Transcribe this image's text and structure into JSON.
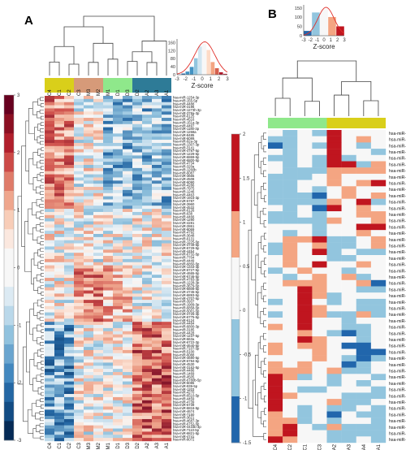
{
  "panels": {
    "A": {
      "label": "A",
      "columns": [
        "C4",
        "C1",
        "C2",
        "C3",
        "M3",
        "M2",
        "M1",
        "D1",
        "D3",
        "D2",
        "A2",
        "A3",
        "A1"
      ],
      "column_groups": [
        {
          "color": "#d9cf1a",
          "count": 3
        },
        {
          "color": "#d69a79",
          "count": 3
        },
        {
          "color": "#8fe88b",
          "count": 3
        },
        {
          "color": "#2e7b97",
          "count": 4
        }
      ],
      "colorbar": {
        "ticks": [
          "3",
          "2",
          "1",
          "0",
          "-1",
          "-2",
          "-3"
        ],
        "colors": [
          "#67001f",
          "#8b0f22",
          "#b11f2c",
          "#cc4a47",
          "#df7b69",
          "#efa68d",
          "#f8cdb8",
          "#fbe8df",
          "#f7f7f7",
          "#f7f7f7",
          "#dceaf3",
          "#bad8ea",
          "#91c2de",
          "#6aa5cf",
          "#4388bf",
          "#2467a4",
          "#124c84",
          "#052a56"
        ]
      },
      "histogram": {
        "xlabel": "Z-score",
        "yticks": [
          "0",
          "40",
          "80",
          "120",
          "160"
        ],
        "xticks": [
          "-3",
          "-2",
          "-1",
          "0",
          "1",
          "2",
          "3"
        ],
        "bins": [
          {
            "value": 2,
            "color": "#2166ac"
          },
          {
            "value": 6,
            "color": "#2166ac"
          },
          {
            "value": 15,
            "color": "#4393c3"
          },
          {
            "value": 36,
            "color": "#4393c3"
          },
          {
            "value": 75,
            "color": "#92c5de"
          },
          {
            "value": 128,
            "color": "#d1e5f0"
          },
          {
            "value": 140,
            "color": "#f7f7f7"
          },
          {
            "value": 112,
            "color": "#fddbc7"
          },
          {
            "value": 58,
            "color": "#f4a582"
          },
          {
            "value": 30,
            "color": "#d6604d"
          },
          {
            "value": 12,
            "color": "#b2182b"
          },
          {
            "value": 5,
            "color": "#b2182b"
          }
        ]
      },
      "row_labels": [
        "hsa-miR-1254-3p",
        "hsa-miR-155-5p",
        "hsa-miR-4488",
        "hsa-miR-3196",
        "hsa-miR-1273h-3p",
        "hsa-miR-378a-3p",
        "hsa-miR-6125",
        "hsa-miR-4516",
        "hsa-miR-151a-3p",
        "hsa-miR-4497",
        "hsa-miR-1180-3p",
        "hsa-miR-1268a",
        "hsa-miR-8485",
        "hsa-miR-6089",
        "hsa-miR-92a-3p",
        "hsa-miR-1307-3p",
        "hsa-miR-3141",
        "hsa-miR-4787-5p",
        "hsa-miR-1229-5p",
        "hsa-miR-6869-5p",
        "hsa-miR-6800-5p",
        "hsa-miR-4734",
        "hsa-miR-320a",
        "hsa-miR-1260b",
        "hsa-miR-6087",
        "hsa-miR-3665",
        "hsa-miR-4508",
        "hsa-miR-6090",
        "hsa-miR-4286",
        "hsa-miR-7975",
        "hsa-miR-1246",
        "hsa-miR-4463",
        "hsa-miR-1915-3p",
        "hsa-miR-5787",
        "hsa-miR-3960",
        "hsa-miR-4532",
        "hsa-miR-6126",
        "hsa-miR-638",
        "hsa-miR-4466",
        "hsa-miR-1290",
        "hsa-miR-4281",
        "hsa-miR-2861",
        "hsa-miR-8069",
        "hsa-miR-4792",
        "hsa-miR-3648",
        "hsa-miR-6131",
        "hsa-miR-1225-5p",
        "hsa-miR-4749-5p",
        "hsa-miR-6729-5p",
        "hsa-miR-4454",
        "hsa-miR-6732-5p",
        "hsa-miR-7704",
        "hsa-miR-4449",
        "hsa-miR-6850-5p",
        "hsa-miR-1343-3p",
        "hsa-miR-6727-5p",
        "hsa-miR-4665-5p",
        "hsa-miR-6746-5p",
        "hsa-miR-4783-3p",
        "hsa-miR-1228-3p",
        "hsa-miR-3679-5p",
        "hsa-miR-6808-5p",
        "hsa-miR-4745-5p",
        "hsa-miR-6893-5p",
        "hsa-miR-4707-5p",
        "hsa-miR-3937",
        "hsa-miR-1909-3p",
        "hsa-miR-6858-5p",
        "hsa-miR-5001-5p",
        "hsa-miR-4725-3p",
        "hsa-miR-6775-5p",
        "hsa-miR-6124",
        "hsa-miR-4484",
        "hsa-miR-6800-3p",
        "hsa-miR-3185",
        "hsa-miR-4428",
        "hsa-miR-1237-5p",
        "hsa-miR-663a",
        "hsa-miR-6722-3p",
        "hsa-miR-4640-5p",
        "hsa-miR-7107-5p",
        "hsa-miR-5100",
        "hsa-miR-6088",
        "hsa-miR-4690-5p",
        "hsa-miR-6784-5p",
        "hsa-miR-4530",
        "hsa-miR-3162-5p",
        "hsa-miR-4486",
        "hsa-miR-1469",
        "hsa-miR-4505",
        "hsa-miR-6780b-5p",
        "hsa-miR-6085",
        "hsa-miR-939-5p",
        "hsa-miR-1203",
        "hsa-miR-4270",
        "hsa-miR-6510-5p",
        "hsa-miR-4459",
        "hsa-miR-4739",
        "hsa-miR-5739",
        "hsa-miR-6816-5p",
        "hsa-miR-4674",
        "hsa-miR-7150",
        "hsa-miR-3621",
        "hsa-miR-4687-3p",
        "hsa-miR-6752-5p",
        "hsa-miR-4433b-3p",
        "hsa-miR-7110-5p",
        "hsa-miR-6821-5p",
        "hsa-miR-4741",
        "hsa-miR-8072"
      ]
    },
    "B": {
      "label": "B",
      "columns": [
        "C4",
        "C2",
        "C1",
        "C3",
        "A2",
        "A3",
        "A4",
        "A1"
      ],
      "column_groups": [
        {
          "color": "#8fe88b",
          "count": 4
        },
        {
          "color": "#d9cf1a",
          "count": 4
        }
      ],
      "colorbar": {
        "ticks": [
          "2",
          "1.5",
          "1",
          "0.5",
          "0",
          "-0.5",
          "-1",
          "-1.5"
        ],
        "colors": [
          "#c0151f",
          "#c0151f",
          "#c0151f",
          "#c0151f",
          "#c0151f",
          "#f4a582",
          "#f4a582",
          "#f4a582",
          "#f7f7f7",
          "#f7f7f7",
          "#f7f7f7",
          "#f7f7f7",
          "#92c5de",
          "#92c5de",
          "#92c5de",
          "#92c5de",
          "#92c5de",
          "#2166ac",
          "#2166ac",
          "#2166ac"
        ]
      },
      "histogram": {
        "xlabel": "Z-score",
        "yticks": [
          "0",
          "50",
          "100",
          "150"
        ],
        "xticks": [
          "-3",
          "-2",
          "-1",
          "0",
          "1",
          "2",
          "3"
        ],
        "bins": [
          {
            "value": 25,
            "color": "#2166ac"
          },
          {
            "value": 118,
            "color": "#92c5de"
          },
          {
            "value": 135,
            "color": "#f7f7f7"
          },
          {
            "value": 95,
            "color": "#f4a582"
          },
          {
            "value": 48,
            "color": "#c0151f"
          }
        ]
      },
      "row_labels": [
        "hsa-miR-514a-3p",
        "hsa-miR-106a-3p",
        "hsa-miR-4635",
        "hsa-miR-2114-5p",
        "hsa-miR-4511",
        "hsa-miR-4459",
        "hsa-miR-376c-5p",
        "hsa-miR-548ac",
        "hsa-miR-7977",
        "hsa-miR-936",
        "hsa-miR-515-3p",
        "hsa-miR-518f-3p",
        "hsa-miR-1273g-3p",
        "hsa-miR-4268",
        "hsa-miR-4795-3p",
        "hsa-miR-553",
        "hsa-miR-2160-3p",
        "hsa-miR-6859-5p",
        "hsa-miR-4698",
        "hsa-miR-4747-5p",
        "hsa-miR-3617-3p",
        "hsa-miR-6885-3p",
        "hsa-miR-6745-3p",
        "hsa-miR-4800-3p",
        "hsa-miR-6723-5p",
        "hsa-miR-525-5p",
        "hsa-miR-970-5p",
        "hsa-miR-548ai",
        "hsa-miR-128-1-5p",
        "hsa-miR-6083",
        "hsa-miR-6500-3p",
        "hsa-miR-1181",
        "hsa-miR-6824-3p",
        "hsa-miR-4535",
        "hsa-miR-22b-3p",
        "hsa-miR-1287-5p",
        "hsa-miR-1307-5p",
        "hsa-miR-29b-2-5p",
        "hsa-miR-326",
        "hsa-miR-3156-3p",
        "hsa-miR-6474-3p",
        "hsa-miR-1287-3p",
        "hsa-miR-3619-3p",
        "hsa-miR-2278",
        "hsa-miR-7706",
        "hsa-miR-185-3p",
        "hsa-miR-670-3p",
        "hsa-miR-15a-5p",
        "hsa-miR-328-5p",
        "hsa-miR-505-3p"
      ],
      "cells": [
        [
          0,
          -1,
          0,
          -1,
          2,
          0,
          0,
          0
        ],
        [
          -1,
          -1,
          0,
          0,
          2,
          0,
          1,
          0
        ],
        [
          -2,
          -1,
          0,
          -1,
          2,
          0,
          -1,
          0
        ],
        [
          0,
          -1,
          0,
          0,
          2,
          0,
          0,
          -1
        ],
        [
          -1,
          -1,
          0,
          -1,
          2,
          -1,
          0,
          0
        ],
        [
          0,
          -1,
          0,
          -1,
          2,
          2,
          -1,
          1
        ],
        [
          0,
          -1,
          -1,
          -1,
          1,
          1,
          1,
          1
        ],
        [
          -1,
          -1,
          -1,
          0,
          1,
          0,
          0,
          0
        ],
        [
          -1,
          -1,
          0,
          0,
          1,
          0,
          1,
          2
        ],
        [
          -1,
          -1,
          0,
          -1,
          0,
          1,
          0,
          0
        ],
        [
          -1,
          -1,
          -1,
          -2,
          0,
          1,
          0,
          1
        ],
        [
          -1,
          -1,
          -1,
          -1,
          1,
          0,
          2,
          -1
        ],
        [
          0,
          -1,
          0,
          -2,
          2,
          0,
          1,
          0
        ],
        [
          -1,
          -1,
          0,
          -1,
          0,
          0,
          1,
          1
        ],
        [
          -1,
          -1,
          -1,
          -1,
          1,
          0,
          0,
          1
        ],
        [
          0,
          0,
          0,
          -1,
          0,
          0,
          2,
          2
        ],
        [
          0,
          -1,
          0,
          -1,
          0,
          0,
          1,
          0
        ],
        [
          0,
          1,
          1,
          2,
          -1,
          -1,
          0,
          1
        ],
        [
          -1,
          1,
          0,
          1,
          -1,
          -1,
          0,
          1
        ],
        [
          -1,
          1,
          0,
          2,
          -1,
          0,
          -1,
          -1
        ],
        [
          0,
          1,
          0,
          0,
          -1,
          -1,
          0,
          0
        ],
        [
          0,
          1,
          0,
          2,
          0,
          0,
          1,
          0
        ],
        [
          -1,
          0,
          1,
          0,
          0,
          -1,
          0,
          0
        ],
        [
          0,
          -1,
          0,
          1,
          0,
          1,
          -1,
          0
        ],
        [
          0,
          1,
          1,
          1,
          0,
          0,
          1,
          -2
        ],
        [
          0,
          0,
          2,
          1,
          0,
          0,
          -1,
          -1
        ],
        [
          0,
          0,
          2,
          1,
          -1,
          0,
          0,
          0
        ],
        [
          -1,
          0,
          2,
          0,
          -1,
          0,
          -1,
          -1
        ],
        [
          0,
          0,
          2,
          1,
          0,
          0,
          -1,
          -1
        ],
        [
          -1,
          0,
          2,
          1,
          -1,
          -1,
          1,
          -1
        ],
        [
          0,
          0,
          2,
          0,
          0,
          -1,
          0,
          0
        ],
        [
          1,
          0,
          2,
          0,
          0,
          -1,
          -1,
          0
        ],
        [
          0,
          0,
          1,
          0,
          -1,
          -2,
          -1,
          0
        ],
        [
          0,
          0,
          2,
          1,
          0,
          0,
          -1,
          0
        ],
        [
          1,
          0,
          1,
          1,
          0,
          -2,
          -2,
          0
        ],
        [
          1,
          0,
          0,
          1,
          0,
          0,
          -2,
          -2
        ],
        [
          0,
          0,
          0,
          1,
          0,
          -1,
          -2,
          -1
        ],
        [
          1,
          0,
          1,
          0,
          0,
          -2,
          -1,
          0
        ],
        [
          1,
          1,
          1,
          0,
          1,
          -1,
          -1,
          0
        ],
        [
          2,
          1,
          -1,
          0,
          -1,
          0,
          0,
          -1
        ],
        [
          2,
          0,
          0,
          0,
          -1,
          0,
          -1,
          0
        ],
        [
          2,
          0,
          -1,
          -1,
          0,
          0,
          0,
          -1
        ],
        [
          2,
          1,
          0,
          0,
          0,
          -1,
          -1,
          -1
        ],
        [
          2,
          0,
          0,
          0,
          1,
          -1,
          -1,
          0
        ],
        [
          2,
          0,
          -1,
          0,
          -1,
          -1,
          0,
          -1
        ],
        [
          1,
          0,
          -1,
          0,
          -2,
          0,
          -1,
          -1
        ],
        [
          1,
          1,
          -1,
          0,
          -1,
          0,
          0,
          -1
        ],
        [
          1,
          2,
          0,
          -1,
          1,
          -1,
          -1,
          -1
        ],
        [
          1,
          2,
          0,
          0,
          -1,
          -1,
          -1,
          -1
        ],
        [
          2,
          1,
          0,
          0,
          -1,
          -1,
          0,
          -1
        ]
      ]
    }
  }
}
